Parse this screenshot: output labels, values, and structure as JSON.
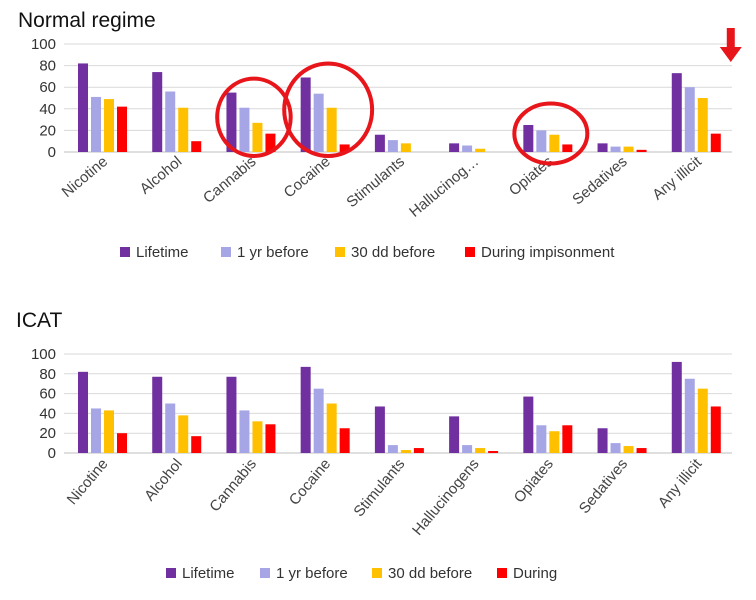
{
  "chart_data": [
    {
      "type": "bar",
      "title": "Normal regime",
      "categories": [
        "Nicotine",
        "Alcohol",
        "Cannabis",
        "Cocaine",
        "Stimulants",
        "Hallucinog…",
        "Opiates",
        "Sedatives",
        "Any illicit"
      ],
      "series": [
        {
          "name": "Lifetime",
          "values": [
            82,
            74,
            55,
            69,
            16,
            8,
            25,
            8,
            73
          ]
        },
        {
          "name": "1 yr before",
          "values": [
            51,
            56,
            41,
            54,
            11,
            6,
            20,
            5,
            60
          ]
        },
        {
          "name": "30 dd before",
          "values": [
            49,
            41,
            27,
            41,
            8,
            3,
            16,
            5,
            50
          ]
        },
        {
          "name": "During impisonment",
          "values": [
            42,
            10,
            17,
            7,
            0,
            0,
            7,
            2,
            17
          ]
        }
      ],
      "ylim": [
        0,
        100
      ],
      "yticks": [
        0,
        20,
        40,
        60,
        80,
        100
      ],
      "grid": true,
      "legend": "bottom",
      "annotations": {
        "circled_categories": [
          "Cannabis",
          "Cocaine",
          "Opiates"
        ],
        "arrow_category": "Any illicit",
        "color": "#e8151b"
      }
    },
    {
      "type": "bar",
      "title": "ICAT",
      "categories": [
        "Nicotine",
        "Alcohol",
        "Cannabis",
        "Cocaine",
        "Stimulants",
        "Hallucinogens",
        "Opiates",
        "Sedatives",
        "Any illicit"
      ],
      "series": [
        {
          "name": "Lifetime",
          "values": [
            82,
            77,
            77,
            87,
            47,
            37,
            57,
            25,
            92
          ]
        },
        {
          "name": "1 yr before",
          "values": [
            45,
            50,
            43,
            65,
            8,
            8,
            28,
            10,
            75
          ]
        },
        {
          "name": "30 dd before",
          "values": [
            43,
            38,
            32,
            50,
            3,
            5,
            22,
            7,
            65
          ]
        },
        {
          "name": "During",
          "values": [
            20,
            17,
            29,
            25,
            5,
            2,
            28,
            5,
            47
          ]
        }
      ],
      "ylim": [
        0,
        100
      ],
      "yticks": [
        0,
        20,
        40,
        60,
        80,
        100
      ],
      "grid": true,
      "legend": "bottom"
    }
  ],
  "colors": [
    "#7030a0",
    "#a6a6e6",
    "#ffc000",
    "#ff0000"
  ]
}
